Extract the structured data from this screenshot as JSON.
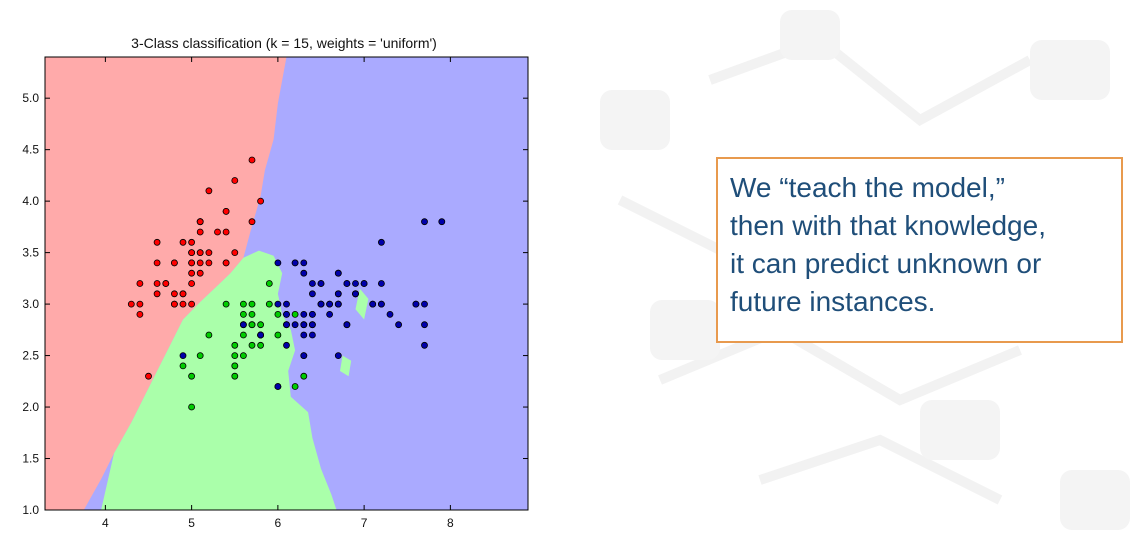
{
  "chart_data": {
    "type": "scatter",
    "title": "3-Class classification (k = 15, weights = 'uniform')",
    "xlabel": "",
    "ylabel": "",
    "xlim": [
      3.3,
      8.9
    ],
    "ylim": [
      1.0,
      5.4
    ],
    "x_ticks": [
      4,
      5,
      6,
      7,
      8
    ],
    "y_ticks": [
      1.0,
      1.5,
      2.0,
      2.5,
      3.0,
      3.5,
      4.0,
      4.5,
      5.0
    ],
    "grid": false,
    "regions": [
      {
        "class": "red",
        "color": "#ffaaaa"
      },
      {
        "class": "green",
        "color": "#aaffaa"
      },
      {
        "class": "blue",
        "color": "#aaaaff"
      }
    ],
    "series": [
      {
        "color": "#ff0000",
        "points": [
          [
            5.1,
            3.5
          ],
          [
            4.9,
            3.0
          ],
          [
            4.7,
            3.2
          ],
          [
            4.6,
            3.1
          ],
          [
            5.0,
            3.6
          ],
          [
            5.4,
            3.9
          ],
          [
            4.6,
            3.4
          ],
          [
            5.0,
            3.4
          ],
          [
            4.4,
            2.9
          ],
          [
            4.9,
            3.1
          ],
          [
            5.4,
            3.7
          ],
          [
            4.8,
            3.4
          ],
          [
            4.8,
            3.0
          ],
          [
            4.3,
            3.0
          ],
          [
            5.8,
            4.0
          ],
          [
            5.7,
            4.4
          ],
          [
            5.4,
            3.9
          ],
          [
            5.1,
            3.5
          ],
          [
            5.7,
            3.8
          ],
          [
            5.1,
            3.8
          ],
          [
            5.4,
            3.4
          ],
          [
            5.1,
            3.7
          ],
          [
            4.6,
            3.6
          ],
          [
            5.1,
            3.3
          ],
          [
            4.8,
            3.4
          ],
          [
            5.0,
            3.0
          ],
          [
            5.0,
            3.4
          ],
          [
            5.2,
            3.5
          ],
          [
            5.2,
            3.4
          ],
          [
            4.7,
            3.2
          ],
          [
            4.8,
            3.1
          ],
          [
            5.4,
            3.4
          ],
          [
            5.2,
            4.1
          ],
          [
            5.5,
            4.2
          ],
          [
            4.9,
            3.1
          ],
          [
            5.0,
            3.2
          ],
          [
            5.5,
            3.5
          ],
          [
            4.9,
            3.6
          ],
          [
            4.4,
            3.0
          ],
          [
            5.1,
            3.4
          ],
          [
            5.0,
            3.5
          ],
          [
            4.5,
            2.3
          ],
          [
            4.4,
            3.2
          ],
          [
            5.0,
            3.5
          ],
          [
            5.1,
            3.8
          ],
          [
            4.8,
            3.0
          ],
          [
            5.1,
            3.8
          ],
          [
            4.6,
            3.2
          ],
          [
            5.3,
            3.7
          ],
          [
            5.0,
            3.3
          ]
        ]
      },
      {
        "color": "#00cc00",
        "points": [
          [
            5.5,
            2.3
          ],
          [
            5.7,
            2.8
          ],
          [
            4.9,
            2.4
          ],
          [
            5.2,
            2.7
          ],
          [
            5.0,
            2.0
          ],
          [
            5.9,
            3.0
          ],
          [
            6.0,
            2.2
          ],
          [
            5.6,
            2.9
          ],
          [
            5.6,
            3.0
          ],
          [
            5.8,
            2.7
          ],
          [
            6.2,
            2.2
          ],
          [
            5.6,
            2.5
          ],
          [
            6.1,
            2.8
          ],
          [
            5.7,
            2.6
          ],
          [
            5.5,
            2.4
          ],
          [
            5.5,
            2.4
          ],
          [
            5.8,
            2.7
          ],
          [
            6.0,
            2.7
          ],
          [
            5.4,
            3.0
          ],
          [
            5.5,
            2.5
          ],
          [
            5.5,
            2.6
          ],
          [
            5.8,
            2.6
          ],
          [
            5.0,
            2.3
          ],
          [
            5.6,
            2.7
          ],
          [
            5.7,
            3.0
          ],
          [
            5.7,
            2.9
          ],
          [
            6.2,
            2.9
          ],
          [
            5.1,
            2.5
          ],
          [
            5.7,
            2.8
          ],
          [
            6.7,
            3.0
          ],
          [
            6.1,
            2.9
          ],
          [
            6.3,
            2.5
          ],
          [
            6.4,
            2.9
          ],
          [
            6.6,
            3.0
          ],
          [
            6.8,
            2.8
          ],
          [
            6.0,
            2.9
          ],
          [
            5.6,
            2.8
          ],
          [
            5.8,
            2.8
          ],
          [
            6.3,
            2.8
          ],
          [
            7.0,
            3.2
          ],
          [
            6.3,
            2.3
          ],
          [
            5.9,
            3.2
          ]
        ]
      },
      {
        "color": "#0000aa",
        "points": [
          [
            7.7,
            3.8
          ],
          [
            7.9,
            3.8
          ],
          [
            7.2,
            3.6
          ],
          [
            6.3,
            3.3
          ],
          [
            6.5,
            3.2
          ],
          [
            6.7,
            3.3
          ],
          [
            6.9,
            3.2
          ],
          [
            6.4,
            3.2
          ],
          [
            6.8,
            3.2
          ],
          [
            7.1,
            3.0
          ],
          [
            6.5,
            3.0
          ],
          [
            7.6,
            3.0
          ],
          [
            7.3,
            2.9
          ],
          [
            6.7,
            2.5
          ],
          [
            7.2,
            3.2
          ],
          [
            6.4,
            2.7
          ],
          [
            6.5,
            3.0
          ],
          [
            7.7,
            2.6
          ],
          [
            6.9,
            3.1
          ],
          [
            5.6,
            2.8
          ],
          [
            7.7,
            2.8
          ],
          [
            6.3,
            2.7
          ],
          [
            6.7,
            3.3
          ],
          [
            7.2,
            3.0
          ],
          [
            6.2,
            2.8
          ],
          [
            6.1,
            3.0
          ],
          [
            6.4,
            2.8
          ],
          [
            7.2,
            3.0
          ],
          [
            7.4,
            2.8
          ],
          [
            6.4,
            2.8
          ],
          [
            6.3,
            2.8
          ],
          [
            6.1,
            2.6
          ],
          [
            7.7,
            3.0
          ],
          [
            6.3,
            3.4
          ],
          [
            6.4,
            3.1
          ],
          [
            6.0,
            3.0
          ],
          [
            6.9,
            3.1
          ],
          [
            6.7,
            3.1
          ],
          [
            5.8,
            2.7
          ],
          [
            6.8,
            3.2
          ],
          [
            6.7,
            3.0
          ],
          [
            6.5,
            3.0
          ],
          [
            6.2,
            3.4
          ],
          [
            4.9,
            2.5
          ],
          [
            6.0,
            2.2
          ],
          [
            6.0,
            3.4
          ],
          [
            6.2,
            3.4
          ],
          [
            6.3,
            2.5
          ],
          [
            7.0,
            3.2
          ],
          [
            6.6,
            2.9
          ],
          [
            6.1,
            2.8
          ],
          [
            5.8,
            2.7
          ],
          [
            6.9,
            3.1
          ],
          [
            6.7,
            3.1
          ],
          [
            6.3,
            2.9
          ],
          [
            6.6,
            3.0
          ],
          [
            6.8,
            2.8
          ],
          [
            6.7,
            3.0
          ],
          [
            6.1,
            2.9
          ],
          [
            6.4,
            2.9
          ],
          [
            7.1,
            3.0
          ],
          [
            7.6,
            3.0
          ],
          [
            6.5,
            3.2
          ]
        ]
      }
    ]
  },
  "callout": {
    "lines": [
      "We “teach the model,”",
      "then with that knowledge,",
      "it can predict unknown or",
      "future instances."
    ]
  }
}
